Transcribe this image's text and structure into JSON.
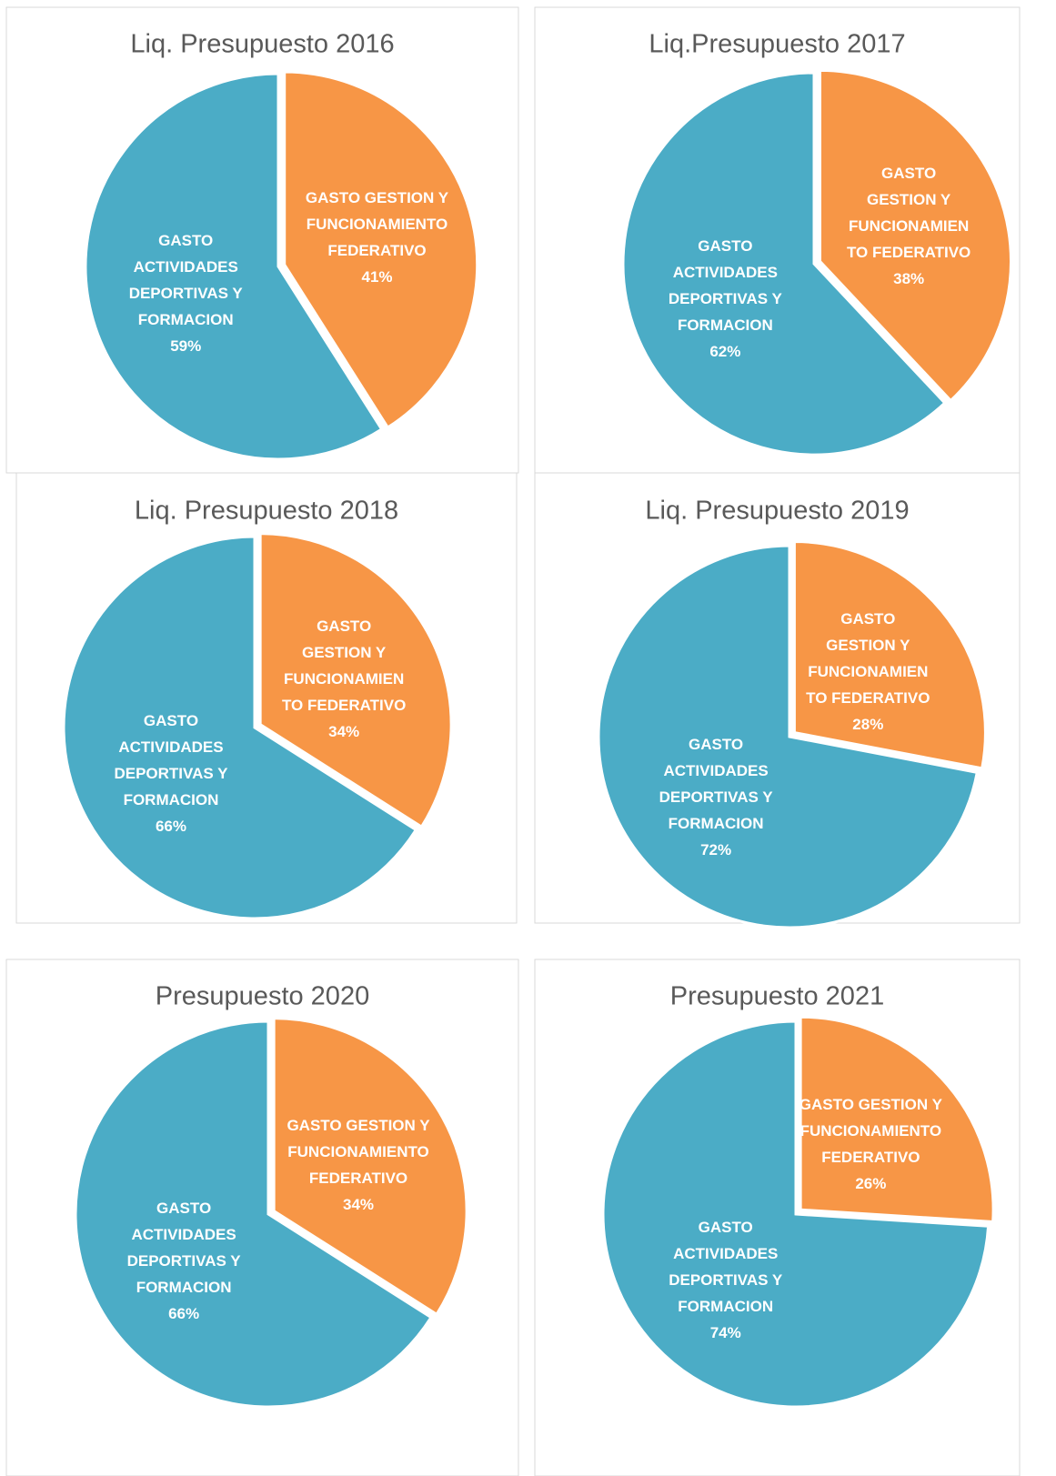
{
  "chart_data": [
    {
      "type": "pie",
      "title": "Liq. Presupuesto 2016",
      "categories": [
        "GASTO GESTION Y FUNCIONAMIENTO FEDERATIVO",
        "GASTO ACTIVIDADES DEPORTIVAS Y FORMACION"
      ],
      "values": [
        41,
        59
      ],
      "value_labels": [
        "41%",
        "59%"
      ],
      "colors": [
        "#f79646",
        "#4bacc6"
      ]
    },
    {
      "type": "pie",
      "title": "Liq.Presupuesto 2017",
      "categories": [
        "GASTO GESTION Y FUNCIONAMIENTO FEDERATIVO",
        "GASTO ACTIVIDADES DEPORTIVAS Y FORMACION"
      ],
      "values": [
        38,
        62
      ],
      "value_labels": [
        "38%",
        "62%"
      ],
      "colors": [
        "#f79646",
        "#4bacc6"
      ]
    },
    {
      "type": "pie",
      "title": "Liq. Presupuesto 2018",
      "categories": [
        "GASTO GESTION Y FUNCIONAMIENTO FEDERATIVO",
        "GASTO ACTIVIDADES DEPORTIVAS Y FORMACION"
      ],
      "values": [
        34,
        66
      ],
      "value_labels": [
        "34%",
        "66%"
      ],
      "colors": [
        "#f79646",
        "#4bacc6"
      ]
    },
    {
      "type": "pie",
      "title": "Liq. Presupuesto 2019",
      "categories": [
        "GASTO GESTION Y FUNCIONAMIENTO FEDERATIVO",
        "GASTO ACTIVIDADES DEPORTIVAS Y FORMACION"
      ],
      "values": [
        28,
        72
      ],
      "value_labels": [
        "28%",
        "72%"
      ],
      "colors": [
        "#f79646",
        "#4bacc6"
      ]
    },
    {
      "type": "pie",
      "title": "Presupuesto 2020",
      "categories": [
        "GASTO GESTION Y FUNCIONAMIENTO FEDERATIVO",
        "GASTO ACTIVIDADES DEPORTIVAS Y FORMACION"
      ],
      "values": [
        34,
        66
      ],
      "value_labels": [
        "34%",
        "66%"
      ],
      "colors": [
        "#f79646",
        "#4bacc6"
      ]
    },
    {
      "type": "pie",
      "title": "Presupuesto 2021",
      "categories": [
        "GASTO GESTION Y FUNCIONAMIENTO FEDERATIVO",
        "GASTO ACTIVIDADES DEPORTIVAS Y FORMACION"
      ],
      "values": [
        26,
        74
      ],
      "value_labels": [
        "26%",
        "74%"
      ],
      "colors": [
        "#f79646",
        "#4bacc6"
      ]
    }
  ]
}
